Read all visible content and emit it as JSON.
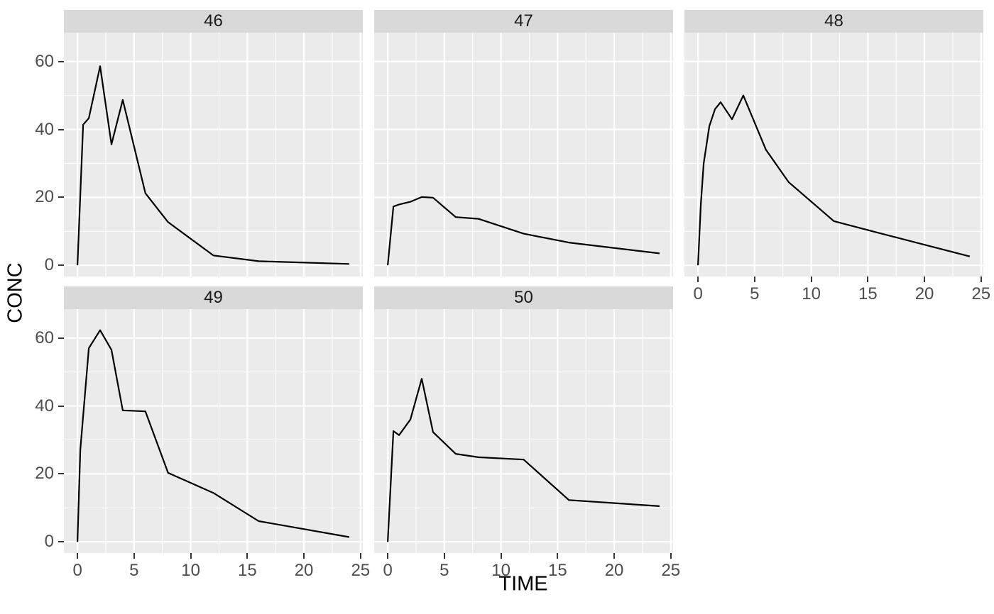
{
  "figure": {
    "kind": "faceted line plot (ggplot2 style)",
    "background": "#ffffff"
  },
  "chart_data": {
    "type": "line",
    "title": "",
    "xlabel": "TIME",
    "ylabel": "CONC",
    "legend": "none",
    "grid": true,
    "x_breaks": [
      0,
      5,
      10,
      15,
      20,
      25
    ],
    "x_minor_breaks": [
      2.5,
      7.5,
      12.5,
      17.5,
      22.5
    ],
    "y_breaks": [
      0,
      20,
      40,
      60
    ],
    "y_minor_breaks": [
      10,
      30,
      50
    ],
    "x_tick_labels": [
      "0",
      "5",
      "10",
      "15",
      "20",
      "25"
    ],
    "y_tick_labels": [
      "0",
      "20",
      "40",
      "60"
    ],
    "xlim": [
      -1.2,
      25.2
    ],
    "ylim": [
      -3.3,
      68.5
    ],
    "style": {
      "panel_bg": "#ebebeb",
      "strip_bg": "#d9d9d9",
      "grid_color": "#ffffff",
      "line_color": "#000000",
      "axis_text_color": "#4d4d4d",
      "strip_text_color": "#1a1a1a",
      "tick_color": "#333333",
      "line_width": 2.2,
      "grid_major_width": 2.2,
      "grid_minor_width": 1.1
    },
    "facets": [
      {
        "label": "46",
        "x": [
          0,
          0.5,
          1,
          2,
          3,
          4,
          6,
          8,
          12,
          16,
          24
        ],
        "y": [
          0,
          41.4,
          43.3,
          58.6,
          35.6,
          48.7,
          21.2,
          12.7,
          2.9,
          1.2,
          0.4
        ]
      },
      {
        "label": "47",
        "x": [
          0,
          0.5,
          1,
          2,
          3,
          4,
          6,
          8,
          12,
          16,
          24
        ],
        "y": [
          0,
          17.3,
          17.9,
          18.7,
          20.1,
          19.9,
          14.2,
          13.7,
          9.3,
          6.7,
          3.5
        ]
      },
      {
        "label": "48",
        "x": [
          0,
          0.25,
          0.5,
          1,
          1.5,
          2,
          3,
          4,
          6,
          8,
          12,
          16,
          24
        ],
        "y": [
          0,
          18,
          30,
          41,
          46,
          48,
          43,
          50,
          34,
          24.5,
          13,
          9.5,
          2.6
        ]
      },
      {
        "label": "49",
        "x": [
          0,
          0.25,
          1,
          2,
          3,
          4,
          6,
          8,
          12,
          16,
          24
        ],
        "y": [
          0,
          27,
          57,
          62.3,
          56.5,
          38.7,
          38.4,
          20.3,
          14.4,
          6.1,
          1.4
        ]
      },
      {
        "label": "50",
        "x": [
          0,
          0.5,
          1,
          2,
          3,
          4,
          6,
          8,
          12,
          16,
          24
        ],
        "y": [
          0,
          32.6,
          31.4,
          36,
          48,
          32.3,
          25.9,
          24.9,
          24.2,
          12.3,
          10.5
        ]
      }
    ]
  }
}
